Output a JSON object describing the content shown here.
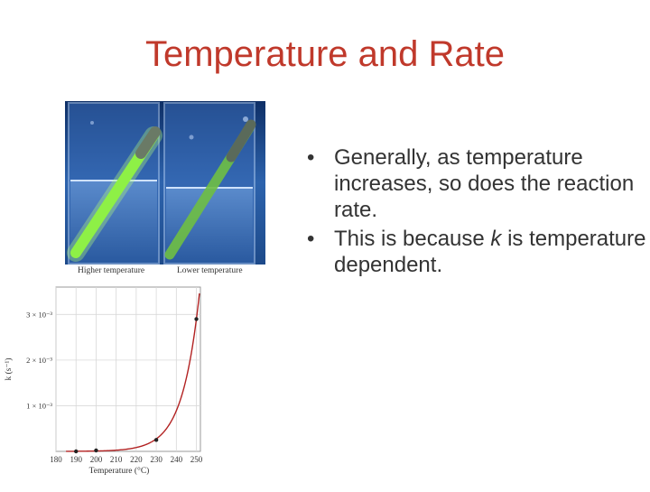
{
  "slide": {
    "title": "Temperature and Rate",
    "photo": {
      "caption_left": "Higher temperature",
      "caption_right": "Lower temperature"
    },
    "bullets": [
      {
        "pre": "Generally, as temperature increases, so does the reaction rate.",
        "em": "",
        "post": ""
      },
      {
        "pre": "This is because ",
        "em": "k",
        "post": " is temperature dependent."
      }
    ],
    "colors": {
      "title": "#c0392b",
      "curve": "#b22222",
      "photo_blue": "#1f4f9a",
      "glow_green": "#7ed957"
    }
  },
  "chart_data": {
    "type": "line",
    "xlabel": "Temperature (°C)",
    "ylabel": "k (s⁻¹)",
    "x_ticks": [
      "180",
      "190",
      "200",
      "210",
      "220",
      "230",
      "240",
      "250"
    ],
    "y_ticks": [
      "1 × 10⁻³",
      "2 × 10⁻³",
      "3 × 10⁻³"
    ],
    "xlim": [
      180,
      252
    ],
    "ylim": [
      0,
      0.0036
    ],
    "grid": true,
    "series": [
      {
        "x": [
          190,
          200,
          230,
          250
        ],
        "y": [
          0.0,
          2e-05,
          0.00025,
          0.0029
        ]
      }
    ]
  }
}
